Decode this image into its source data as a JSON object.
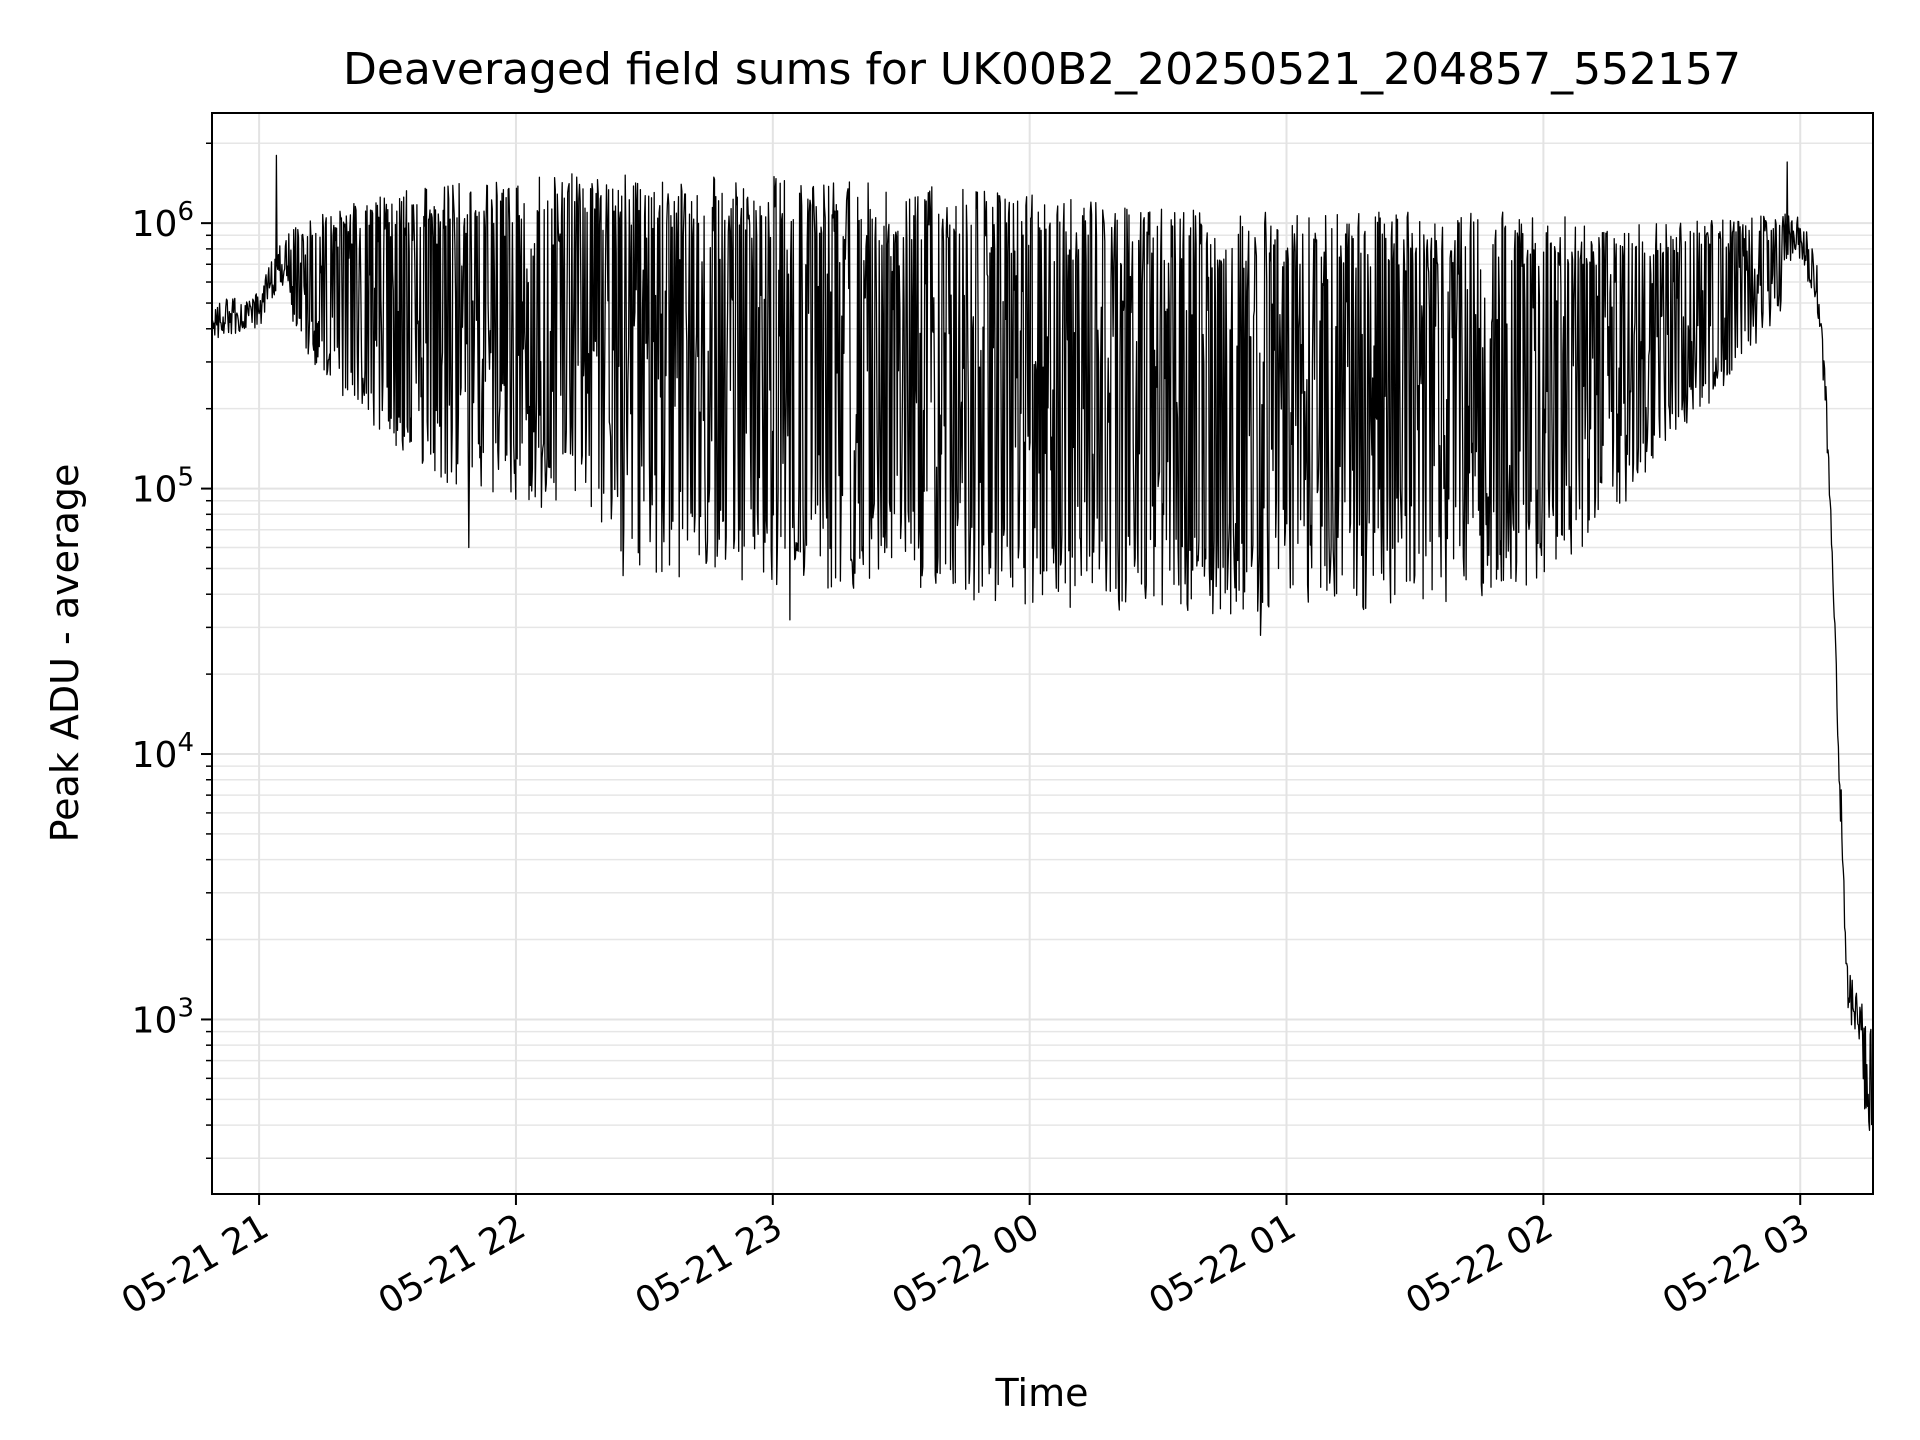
{
  "chart_data": {
    "type": "line",
    "title": "Deaveraged field sums for UK00B2_20250521_204857_552157",
    "xlabel": "Time",
    "ylabel": "Peak ADU - average",
    "x_scale": "time",
    "y_scale": "log",
    "xlim": [
      "2025-05-21 20:49",
      "2025-05-22 03:17"
    ],
    "ylim": [
      220,
      2600000
    ],
    "grid": true,
    "grid_minor": true,
    "x_ticks": [
      {
        "t": "2025-05-21 21:00",
        "label": "05-21 21"
      },
      {
        "t": "2025-05-21 22:00",
        "label": "05-21 22"
      },
      {
        "t": "2025-05-21 23:00",
        "label": "05-21 23"
      },
      {
        "t": "2025-05-22 00:00",
        "label": "05-22 00"
      },
      {
        "t": "2025-05-22 01:00",
        "label": "05-22 01"
      },
      {
        "t": "2025-05-22 02:00",
        "label": "05-22 02"
      },
      {
        "t": "2025-05-22 03:00",
        "label": "05-22 03"
      }
    ],
    "y_ticks": [
      {
        "value": 1000,
        "base": "10",
        "exp": "3"
      },
      {
        "value": 10000,
        "base": "10",
        "exp": "4"
      },
      {
        "value": 100000,
        "base": "10",
        "exp": "5"
      },
      {
        "value": 1000000,
        "base": "10",
        "exp": "6"
      }
    ],
    "series": [
      {
        "color": "#000000",
        "envelope_notes": "dense oscillating line; envelope given as low/high at timestamps",
        "envelope": [
          {
            "t": "2025-05-21 20:49",
            "low": 330000,
            "high": 500000
          },
          {
            "t": "2025-05-21 21:00",
            "low": 360000,
            "high": 560000
          },
          {
            "t": "2025-05-21 21:05",
            "low": 500000,
            "high": 900000
          },
          {
            "t": "2025-05-21 21:15",
            "low": 250000,
            "high": 1100000
          },
          {
            "t": "2025-05-21 21:30",
            "low": 150000,
            "high": 1300000
          },
          {
            "t": "2025-05-21 21:45",
            "low": 100000,
            "high": 1400000
          },
          {
            "t": "2025-05-21 22:00",
            "low": 90000,
            "high": 1500000
          },
          {
            "t": "2025-05-21 22:15",
            "low": 90000,
            "high": 1600000
          },
          {
            "t": "2025-05-21 22:30",
            "low": 45000,
            "high": 1500000
          },
          {
            "t": "2025-05-21 22:45",
            "low": 45000,
            "high": 1500000
          },
          {
            "t": "2025-05-21 23:00",
            "low": 40000,
            "high": 1500000
          },
          {
            "t": "2025-05-21 23:15",
            "low": 42000,
            "high": 1450000
          },
          {
            "t": "2025-05-21 23:30",
            "low": 42000,
            "high": 1400000
          },
          {
            "t": "2025-05-21 23:45",
            "low": 38000,
            "high": 1350000
          },
          {
            "t": "2025-05-22 00:00",
            "low": 36000,
            "high": 1300000
          },
          {
            "t": "2025-05-22 00:15",
            "low": 35000,
            "high": 1200000
          },
          {
            "t": "2025-05-22 00:30",
            "low": 34000,
            "high": 1150000
          },
          {
            "t": "2025-05-22 00:45",
            "low": 33000,
            "high": 1100000
          },
          {
            "t": "2025-05-22 01:00",
            "low": 35000,
            "high": 1100000
          },
          {
            "t": "2025-05-22 01:15",
            "low": 35000,
            "high": 1100000
          },
          {
            "t": "2025-05-22 01:30",
            "low": 34000,
            "high": 1100000
          },
          {
            "t": "2025-05-22 01:45",
            "low": 38000,
            "high": 1100000
          },
          {
            "t": "2025-05-22 02:00",
            "low": 45000,
            "high": 1100000
          },
          {
            "t": "2025-05-22 02:15",
            "low": 70000,
            "high": 1000000
          },
          {
            "t": "2025-05-22 02:30",
            "low": 150000,
            "high": 1000000
          },
          {
            "t": "2025-05-22 02:45",
            "low": 260000,
            "high": 1050000
          },
          {
            "t": "2025-05-22 03:00",
            "low": 600000,
            "high": 1100000
          },
          {
            "t": "2025-05-22 03:04",
            "low": 400000,
            "high": 700000
          },
          {
            "t": "2025-05-22 03:06",
            "low": 170000,
            "high": 250000
          },
          {
            "t": "2025-05-22 03:08",
            "low": 20000,
            "high": 40000
          },
          {
            "t": "2025-05-22 03:10",
            "low": 2500,
            "high": 5000
          },
          {
            "t": "2025-05-22 03:11",
            "low": 900,
            "high": 1600
          },
          {
            "t": "2025-05-22 03:14",
            "low": 550,
            "high": 1200
          },
          {
            "t": "2025-05-22 03:17",
            "low": 330,
            "high": 900
          }
        ],
        "highlighted_spikes": [
          {
            "t": "2025-05-21 21:04",
            "value": 1800000
          },
          {
            "t": "2025-05-21 21:49",
            "value": 60000
          },
          {
            "t": "2025-05-21 22:06",
            "value": 85000
          },
          {
            "t": "2025-05-21 22:25",
            "value": 47000
          },
          {
            "t": "2025-05-21 23:04",
            "value": 32000
          },
          {
            "t": "2025-05-22 00:54",
            "value": 28000
          },
          {
            "t": "2025-05-22 02:57",
            "value": 1700000
          }
        ]
      }
    ]
  }
}
